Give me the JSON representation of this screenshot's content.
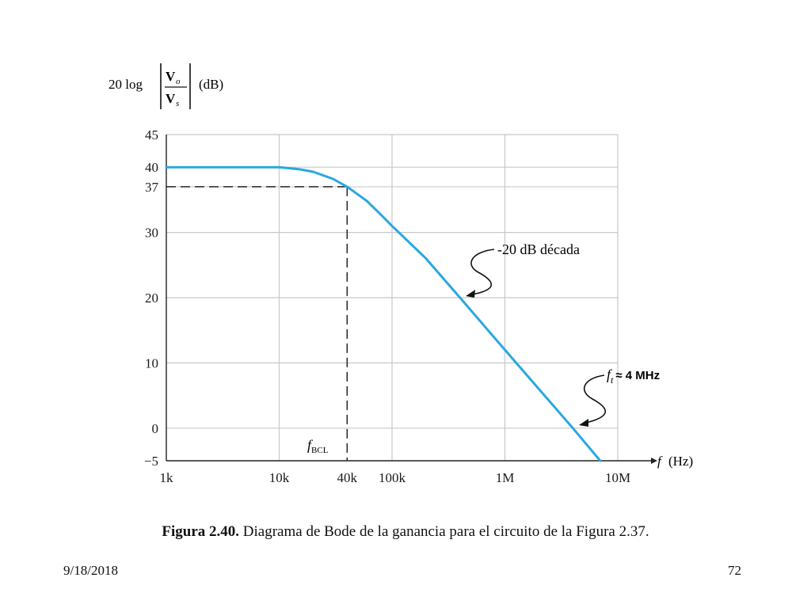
{
  "chart_data": {
    "type": "line",
    "ylabel": {
      "prefix": "20 log",
      "numerator": "V",
      "numerator_sub": "o",
      "denominator": "V",
      "denominator_sub": "s",
      "unit": "(dB)"
    },
    "xlabel": {
      "symbol": "f",
      "unit": "(Hz)"
    },
    "x_scale": "log",
    "xlim": [
      1000,
      10000000
    ],
    "ylim": [
      -5,
      45
    ],
    "grid": true,
    "x_ticks": [
      {
        "value": 1000,
        "label": "1k"
      },
      {
        "value": 10000,
        "label": "10k"
      },
      {
        "value": 40000,
        "label": "40k"
      },
      {
        "value": 100000,
        "label": "100k"
      },
      {
        "value": 1000000,
        "label": "1M"
      },
      {
        "value": 10000000,
        "label": "10M"
      }
    ],
    "y_ticks": [
      {
        "value": 45,
        "label": "45"
      },
      {
        "value": 40,
        "label": "40"
      },
      {
        "value": 37,
        "label": "37"
      },
      {
        "value": 30,
        "label": "30"
      },
      {
        "value": 20,
        "label": "20"
      },
      {
        "value": 10,
        "label": "10"
      },
      {
        "value": 0,
        "label": "0"
      },
      {
        "value": -5,
        "label": "−5"
      }
    ],
    "series": [
      {
        "color": "#2aa7e0",
        "x": [
          1000,
          10000,
          15000,
          20000,
          25000,
          30000,
          40000,
          50000,
          60000,
          80000,
          100000,
          200000,
          400000,
          1000000,
          4000000,
          7000000
        ],
        "y": [
          40,
          40,
          39.7,
          39.3,
          38.7,
          38.2,
          37,
          35.8,
          34.8,
          32.7,
          31,
          26,
          20,
          12,
          0,
          -5
        ]
      }
    ],
    "dashed_guides": {
      "y": 37,
      "x": 40000,
      "color": "#222222"
    },
    "annotations": [
      {
        "text": "-20 dB década"
      },
      {
        "text_symbol": "f",
        "text_sub": "t",
        "text_rest": "≈ 4 MHz"
      },
      {
        "text_symbol": "f",
        "text_sub": "BCL"
      }
    ]
  },
  "caption": {
    "bold": "Figura 2.40.",
    "rest": " Diagrama de Bode de la ganancia para el circuito de la Figura 2.37."
  },
  "footer": {
    "date": "9/18/2018",
    "page": "72"
  }
}
